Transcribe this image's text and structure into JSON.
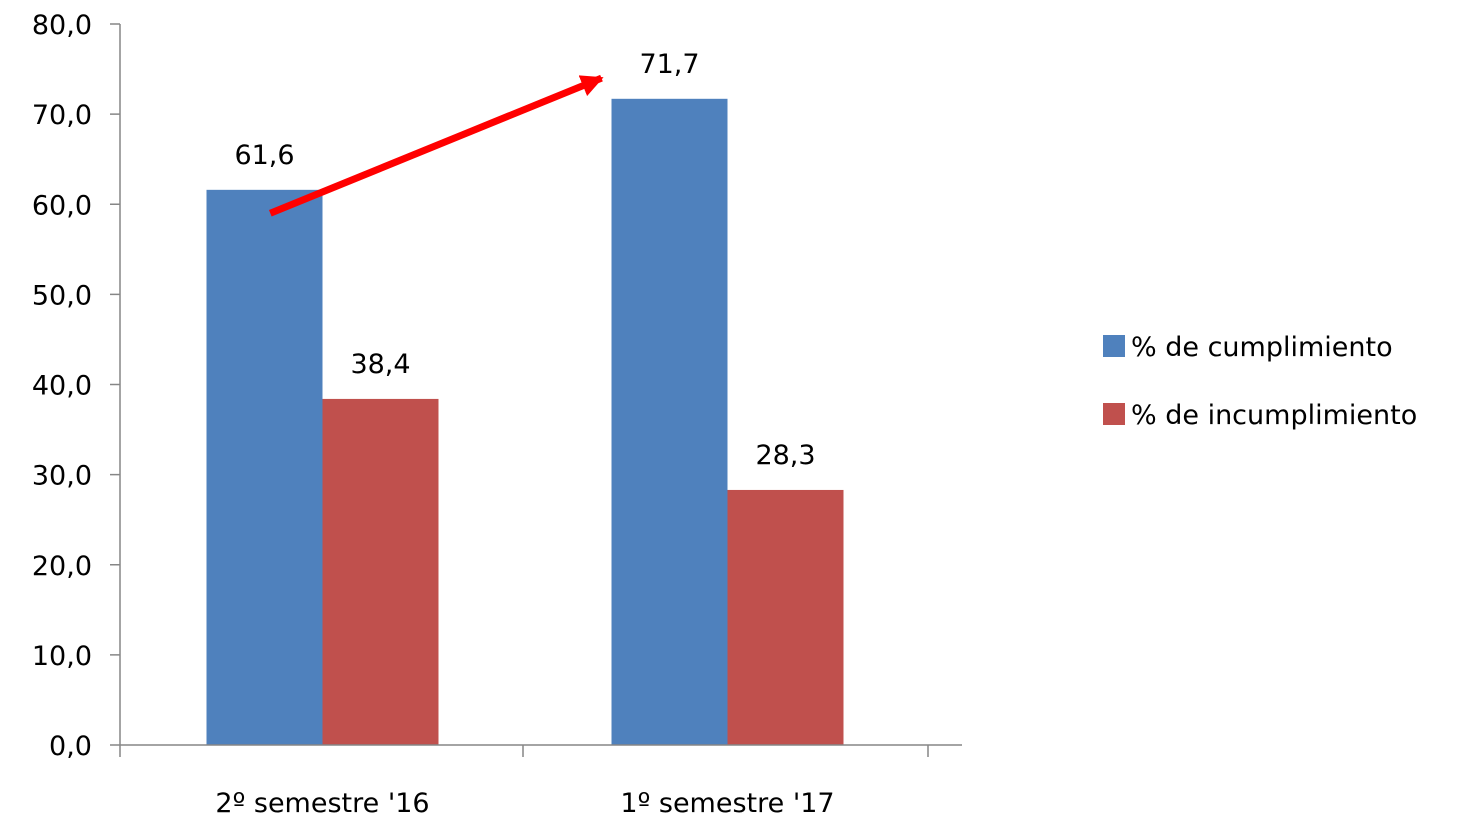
{
  "chart_data": {
    "type": "bar",
    "categories": [
      "2º semestre '16",
      "1º semestre '17"
    ],
    "series": [
      {
        "name": "% de cumplimiento",
        "values": [
          61.6,
          71.7
        ],
        "value_labels": [
          "61,6",
          "71,7"
        ],
        "color": "#4F81BD"
      },
      {
        "name": "% de incumplimiento",
        "values": [
          38.4,
          28.3
        ],
        "value_labels": [
          "38,4",
          "28,3"
        ],
        "color": "#C0504D"
      }
    ],
    "ylim": [
      0,
      80
    ],
    "y_ticks": [
      0,
      10,
      20,
      30,
      40,
      50,
      60,
      70,
      80
    ],
    "y_tick_labels": [
      "0,0",
      "10,0",
      "20,0",
      "30,0",
      "40,0",
      "50,0",
      "60,0",
      "70,0",
      "80,0"
    ],
    "title": "",
    "xlabel": "",
    "ylabel": "",
    "grid": false,
    "legend_position": "right",
    "annotation": {
      "type": "arrow",
      "color": "#FF0000",
      "from": {
        "category": "2º semestre '16",
        "value": 59
      },
      "to": {
        "category": "1º semestre '17",
        "value": 74
      }
    }
  }
}
